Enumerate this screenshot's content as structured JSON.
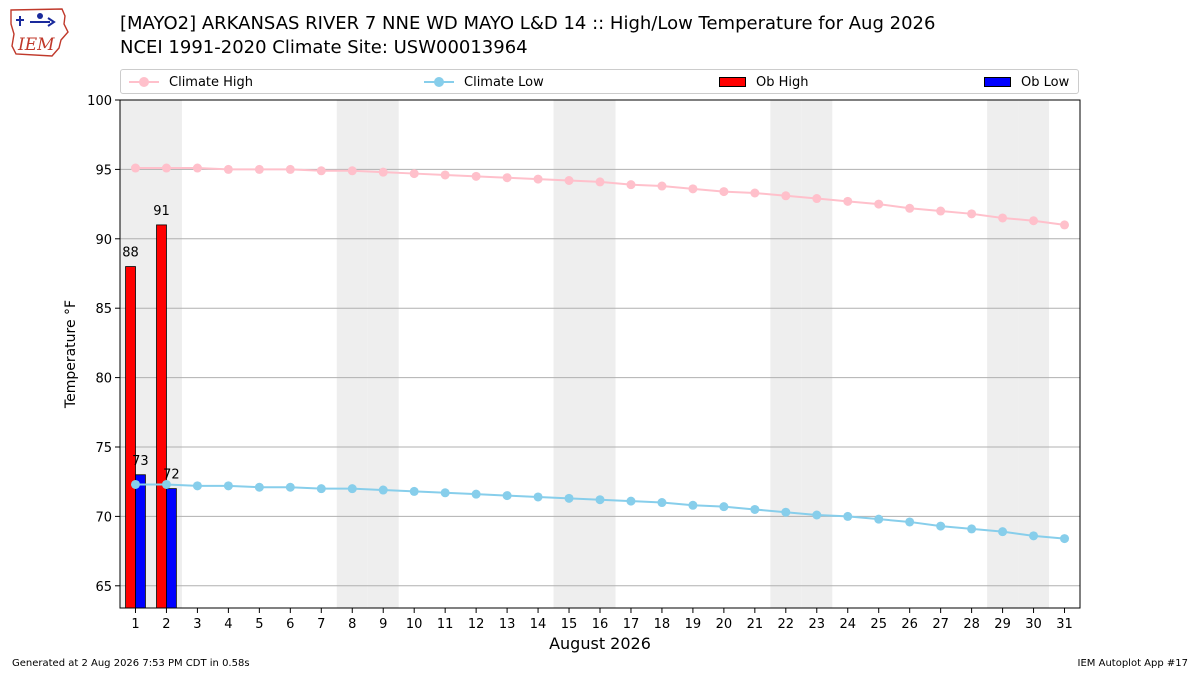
{
  "header": {
    "title_line1": "[MAYO2] ARKANSAS RIVER 7 NNE WD MAYO L&D 14 :: High/Low Temperature for Aug 2026",
    "title_line2": "NCEI 1991-2020 Climate Site: USW00013964",
    "logo_text": "IEM"
  },
  "legend": {
    "climate_high": "Climate High",
    "climate_low": "Climate Low",
    "ob_high": "Ob High",
    "ob_low": "Ob Low"
  },
  "footer": {
    "generated": "Generated at 2 Aug 2026 7:53 PM CDT in 0.58s",
    "app": "IEM Autoplot App #17"
  },
  "colors": {
    "climate_high": "#ffc0cb",
    "climate_low": "#87ceeb",
    "ob_high": "#ff0000",
    "ob_low": "#0000ff",
    "weekend_band": "#eeeeee",
    "grid": "#b0b0b0"
  },
  "chart_data": {
    "type": "bar",
    "xlabel": "August 2026",
    "ylabel": "Temperature °F",
    "ylim": [
      63.4,
      100
    ],
    "yticks": [
      65,
      70,
      75,
      80,
      85,
      90,
      95,
      100
    ],
    "x": [
      1,
      2,
      3,
      4,
      5,
      6,
      7,
      8,
      9,
      10,
      11,
      12,
      13,
      14,
      15,
      16,
      17,
      18,
      19,
      20,
      21,
      22,
      23,
      24,
      25,
      26,
      27,
      28,
      29,
      30,
      31
    ],
    "weekend_days": [
      1,
      2,
      8,
      9,
      15,
      16,
      22,
      23,
      29,
      30
    ],
    "grid": "horizontal",
    "legend_position": "top",
    "series": [
      {
        "name": "Climate High",
        "type": "line",
        "values": [
          95.1,
          95.1,
          95.1,
          95.0,
          95.0,
          95.0,
          94.9,
          94.9,
          94.8,
          94.7,
          94.6,
          94.5,
          94.4,
          94.3,
          94.2,
          94.1,
          93.9,
          93.8,
          93.6,
          93.4,
          93.3,
          93.1,
          92.9,
          92.7,
          92.5,
          92.2,
          92.0,
          91.8,
          91.5,
          91.3,
          91.0
        ]
      },
      {
        "name": "Climate Low",
        "type": "line",
        "values": [
          72.3,
          72.3,
          72.2,
          72.2,
          72.1,
          72.1,
          72.0,
          72.0,
          71.9,
          71.8,
          71.7,
          71.6,
          71.5,
          71.4,
          71.3,
          71.2,
          71.1,
          71.0,
          70.8,
          70.7,
          70.5,
          70.3,
          70.1,
          70.0,
          69.8,
          69.6,
          69.3,
          69.1,
          68.9,
          68.6,
          68.4
        ]
      },
      {
        "name": "Ob High",
        "type": "bar",
        "x": [
          1,
          2
        ],
        "values": [
          88,
          91
        ],
        "labels": [
          "88",
          "91"
        ]
      },
      {
        "name": "Ob Low",
        "type": "bar",
        "x": [
          1,
          2
        ],
        "values": [
          73,
          72
        ],
        "labels": [
          "73",
          "72"
        ]
      }
    ]
  }
}
